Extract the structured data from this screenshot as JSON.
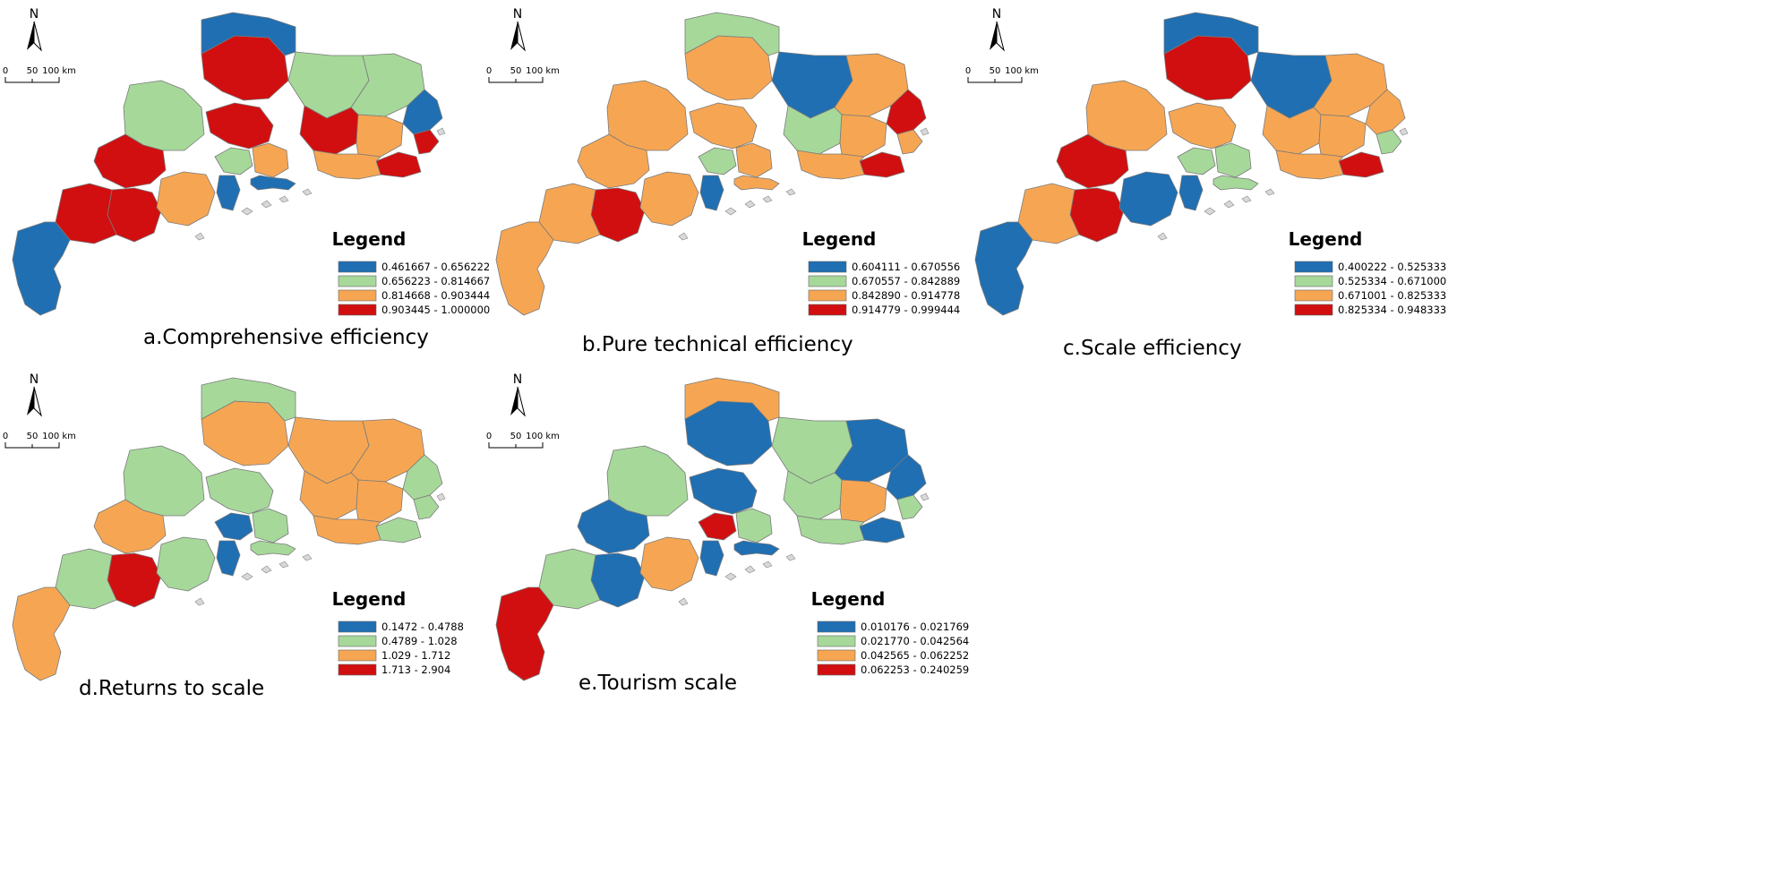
{
  "colors": {
    "class1": "#1f6fb2",
    "class2": "#a6d89a",
    "class3": "#f6a653",
    "class4": "#d10f10"
  },
  "scale_bar": {
    "ticks": [
      "0",
      "50",
      "100 km"
    ]
  },
  "north_arrow": {
    "label": "N"
  },
  "legend_title": "Legend",
  "maps": [
    {
      "id": "a",
      "caption": "a.Comprehensive efficiency",
      "legend": [
        "0.461667 - 0.656222",
        "0.656223 - 0.814667",
        "0.814668 - 0.903444",
        "0.903445 - 1.000000"
      ],
      "regions": [
        4,
        1,
        2,
        2,
        2,
        4,
        2,
        3,
        4,
        3,
        4,
        1,
        4,
        3,
        4,
        4,
        1,
        3,
        4,
        1,
        1
      ]
    },
    {
      "id": "b",
      "caption": "b.Pure technical efficiency",
      "legend": [
        "0.604111 - 0.670556",
        "0.670557 - 0.842889",
        "0.842890 - 0.914778",
        "0.914779 - 0.999444"
      ],
      "regions": [
        3,
        2,
        1,
        3,
        3,
        3,
        2,
        3,
        2,
        3,
        4,
        4,
        3,
        3,
        3,
        4,
        1,
        3,
        3,
        3,
        3
      ]
    },
    {
      "id": "c",
      "caption": "c.Scale efficiency",
      "legend": [
        "0.400222 - 0.525333",
        "0.525334 - 0.671000",
        "0.671001 - 0.825333",
        "0.825334 - 0.948333"
      ],
      "regions": [
        4,
        1,
        1,
        3,
        3,
        3,
        2,
        2,
        3,
        3,
        4,
        3,
        2,
        3,
        4,
        4,
        1,
        1,
        3,
        1,
        2
      ]
    },
    {
      "id": "d",
      "caption": "d.Returns to scale",
      "legend": [
        "0.1472 - 0.4788",
        "0.4789 - 1.028",
        "1.029 - 1.712",
        "1.713 - 2.904"
      ],
      "regions": [
        3,
        2,
        3,
        3,
        2,
        2,
        1,
        2,
        3,
        3,
        2,
        2,
        2,
        3,
        3,
        4,
        1,
        2,
        2,
        3,
        2
      ]
    },
    {
      "id": "e",
      "caption": "e.Tourism scale",
      "legend": [
        "0.010176 - 0.021769",
        "0.021770 - 0.042564",
        "0.042565 - 0.062252",
        "0.062253 - 0.240259"
      ],
      "regions": [
        1,
        3,
        2,
        1,
        2,
        1,
        4,
        2,
        2,
        3,
        1,
        1,
        2,
        2,
        1,
        1,
        1,
        3,
        2,
        4,
        1
      ]
    }
  ]
}
